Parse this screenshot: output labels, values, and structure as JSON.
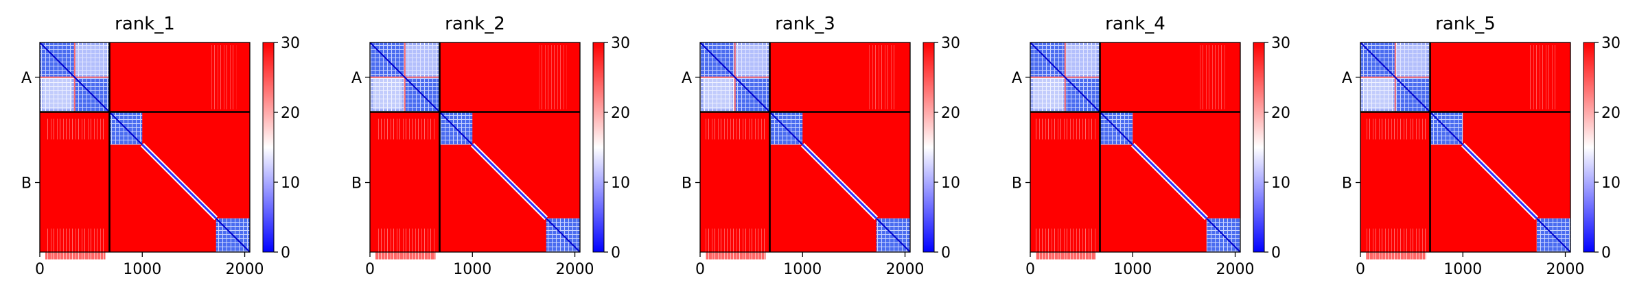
{
  "chart_data": {
    "type": "heatmap",
    "colormap": {
      "name": "bwr",
      "low": "#0000ff",
      "mid": "#ffffff",
      "high": "#ff0000"
    },
    "panels": [
      {
        "title": "rank_1"
      },
      {
        "title": "rank_2"
      },
      {
        "title": "rank_3"
      },
      {
        "title": "rank_4"
      },
      {
        "title": "rank_5"
      }
    ],
    "x_ticks": [
      "0",
      "1000",
      "2000"
    ],
    "x_tick_values": [
      0,
      1000,
      2000
    ],
    "xlim": [
      0,
      2050
    ],
    "y_labels": [
      "A",
      "B"
    ],
    "y_label_centers": [
      340,
      1370
    ],
    "ylim": [
      0,
      2050
    ],
    "chain_breaks": [
      680
    ],
    "blocks": {
      "A": {
        "range": [
          0,
          680
        ],
        "sub_break": 340
      },
      "B": {
        "range": [
          680,
          2050
        ],
        "domains": [
          [
            680,
            1000
          ],
          [
            1720,
            2050
          ]
        ],
        "diagonal_band": [
          1000,
          1720
        ]
      }
    },
    "colorbar": {
      "ticks": [
        "0",
        "10",
        "20",
        "30"
      ],
      "tick_values": [
        0,
        10,
        20,
        30
      ],
      "range": [
        0,
        30
      ]
    }
  }
}
